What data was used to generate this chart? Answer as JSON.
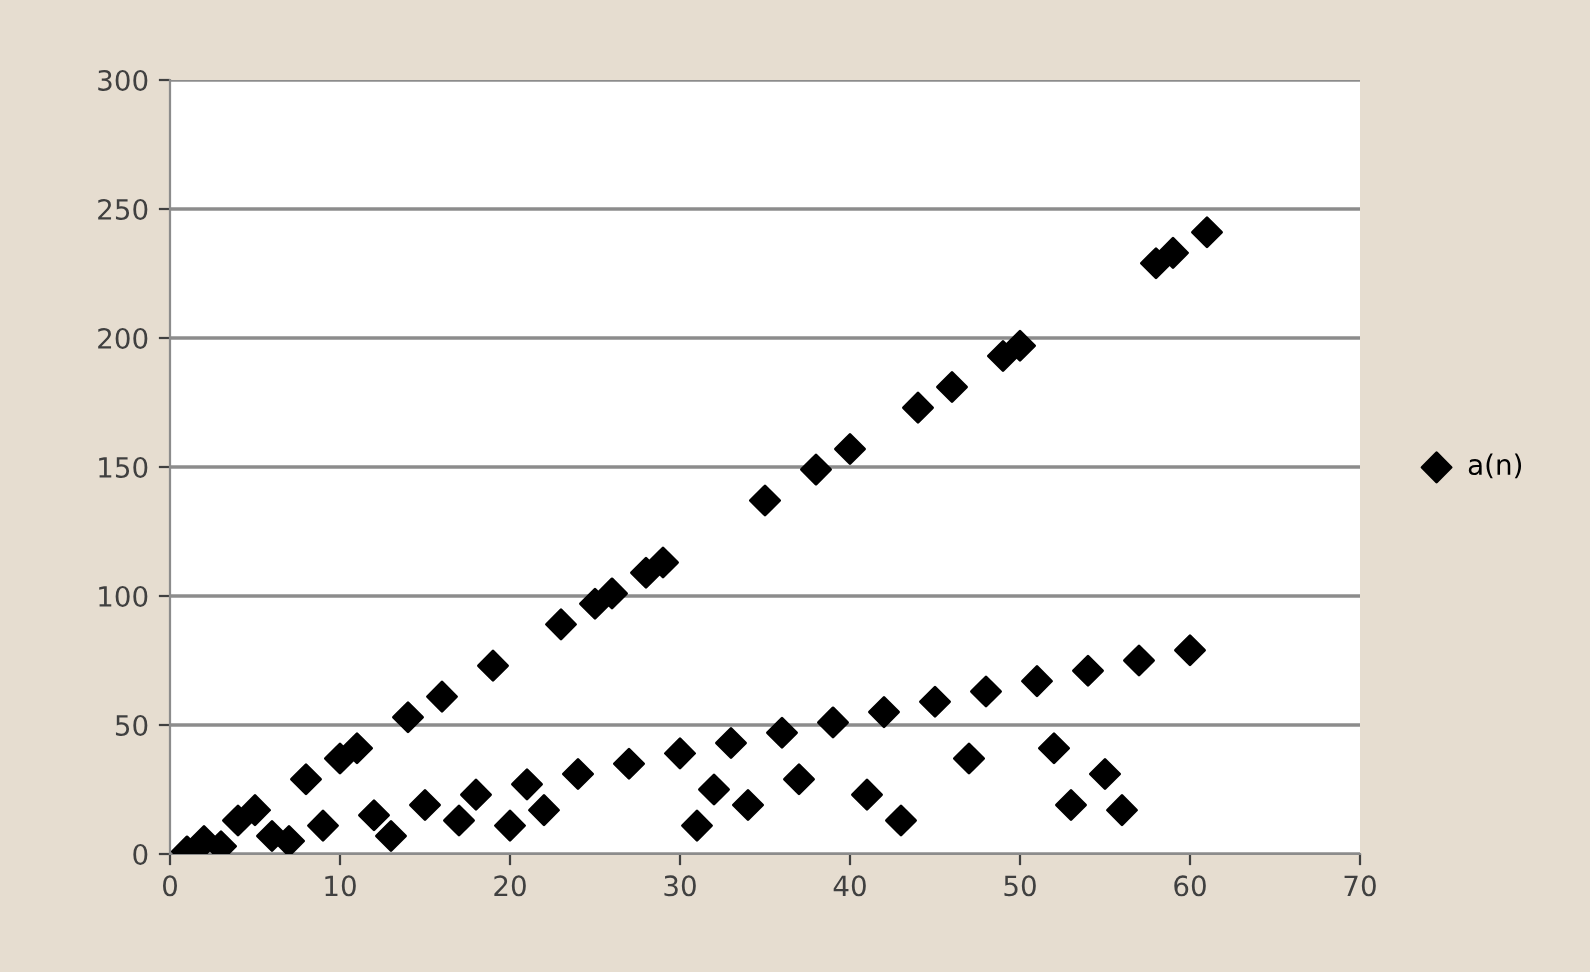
{
  "chart_data": {
    "type": "scatter",
    "series": [
      {
        "name": "a(n)",
        "color": "#000000",
        "x": [
          1,
          2,
          3,
          4,
          5,
          6,
          7,
          8,
          9,
          10,
          11,
          12,
          13,
          14,
          15,
          16,
          17,
          18,
          19,
          20,
          21,
          22,
          23,
          24,
          25,
          26,
          27,
          28,
          29,
          30,
          31,
          32,
          33,
          34,
          35,
          36,
          37,
          38,
          39,
          40,
          41,
          42,
          43,
          44,
          45,
          46,
          47,
          48,
          49,
          50,
          51,
          52,
          53,
          54,
          55,
          56,
          57,
          58,
          59,
          60,
          61
        ],
        "values": [
          1,
          5,
          3,
          13,
          17,
          7,
          5,
          29,
          11,
          37,
          41,
          15,
          7,
          53,
          19,
          61,
          13,
          23,
          73,
          11,
          27,
          17,
          89,
          31,
          97,
          101,
          35,
          109,
          113,
          39,
          11,
          25,
          43,
          19,
          137,
          47,
          29,
          149,
          51,
          157,
          23,
          55,
          13,
          173,
          59,
          181,
          37,
          63,
          193,
          197,
          67,
          41,
          19,
          71,
          31,
          17,
          75,
          229,
          233,
          79,
          241
        ]
      }
    ],
    "xlim": [
      0,
      70
    ],
    "xticks": [
      0,
      10,
      20,
      30,
      40,
      50,
      60,
      70
    ],
    "ylim": [
      0,
      300
    ],
    "yticks": [
      0,
      50,
      100,
      150,
      200,
      250,
      300
    ],
    "grid": "y",
    "legend": "right",
    "marker": "diamond"
  }
}
